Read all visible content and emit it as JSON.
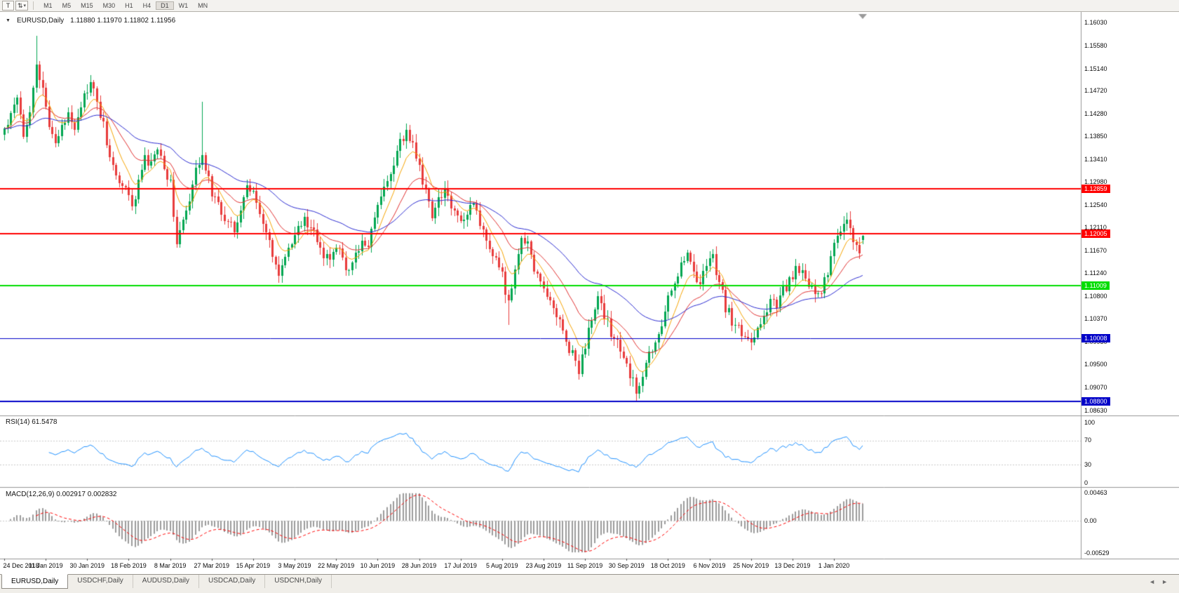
{
  "toolbar": {
    "tool_button_label": "T",
    "icons": {
      "cursor": "⇅",
      "caret": "▾"
    },
    "timeframes": [
      "M1",
      "M5",
      "M15",
      "M30",
      "H1",
      "H4",
      "D1",
      "W1",
      "MN"
    ],
    "active_timeframe": "D1"
  },
  "chart_header": {
    "collapse_icon": "▼",
    "title": "EURUSD,Daily",
    "ohlc": "1.11880 1.11970 1.11802 1.11956"
  },
  "chart_data": {
    "type": "candlestick",
    "symbol": "EURUSD",
    "timeframe": "Daily",
    "current_ohlc": {
      "open": 1.1188,
      "high": 1.1197,
      "low": 1.11802,
      "close": 1.11956
    },
    "ylim": [
      1.0863,
      1.1603
    ],
    "y_ticks": [
      "1.16030",
      "1.15580",
      "1.15140",
      "1.14720",
      "1.14280",
      "1.13850",
      "1.13410",
      "1.12980",
      "1.12540",
      "1.12110",
      "1.11670",
      "1.11240",
      "1.10800",
      "1.10370",
      "1.09930",
      "1.09500",
      "1.09070",
      "1.08630"
    ],
    "x_labels": [
      "24 Dec 2018",
      "11 Jan 2019",
      "30 Jan 2019",
      "18 Feb 2019",
      "8 Mar 2019",
      "27 Mar 2019",
      "15 Apr 2019",
      "3 May 2019",
      "22 May 2019",
      "10 Jun 2019",
      "28 Jun 2019",
      "17 Jul 2019",
      "5 Aug 2019",
      "23 Aug 2019",
      "11 Sep 2019",
      "30 Sep 2019",
      "18 Oct 2019",
      "6 Nov 2019",
      "25 Nov 2019",
      "13 Dec 2019",
      "1 Jan 2020"
    ],
    "candles_per_label": 13,
    "num_candles": 270,
    "up_color": "#00A651",
    "down_color": "#E83B3B",
    "close_waypoints": [
      [
        0,
        1.1398
      ],
      [
        2,
        1.1432
      ],
      [
        4,
        1.1468
      ],
      [
        6,
        1.1392
      ],
      [
        8,
        1.1438
      ],
      [
        10,
        1.1522
      ],
      [
        12,
        1.1468
      ],
      [
        14,
        1.1412
      ],
      [
        16,
        1.1375
      ],
      [
        18,
        1.1398
      ],
      [
        20,
        1.1432
      ],
      [
        22,
        1.1408
      ],
      [
        24,
        1.1446
      ],
      [
        27,
        1.1488
      ],
      [
        29,
        1.1448
      ],
      [
        31,
        1.1408
      ],
      [
        33,
        1.1342
      ],
      [
        36,
        1.13
      ],
      [
        38,
        1.1286
      ],
      [
        40,
        1.1248
      ],
      [
        42,
        1.1302
      ],
      [
        44,
        1.134
      ],
      [
        46,
        1.133
      ],
      [
        48,
        1.1366
      ],
      [
        50,
        1.1322
      ],
      [
        52,
        1.13
      ],
      [
        54,
        1.1186
      ],
      [
        56,
        1.1222
      ],
      [
        58,
        1.1256
      ],
      [
        60,
        1.132
      ],
      [
        62,
        1.1356
      ],
      [
        64,
        1.13
      ],
      [
        66,
        1.1264
      ],
      [
        68,
        1.124
      ],
      [
        70,
        1.1226
      ],
      [
        72,
        1.1214
      ],
      [
        74,
        1.1246
      ],
      [
        76,
        1.1286
      ],
      [
        78,
        1.129
      ],
      [
        80,
        1.123
      ],
      [
        82,
        1.12
      ],
      [
        84,
        1.1156
      ],
      [
        86,
        1.1126
      ],
      [
        88,
        1.115
      ],
      [
        90,
        1.1186
      ],
      [
        92,
        1.1206
      ],
      [
        94,
        1.1226
      ],
      [
        96,
        1.1214
      ],
      [
        98,
        1.1186
      ],
      [
        100,
        1.116
      ],
      [
        102,
        1.1146
      ],
      [
        104,
        1.1176
      ],
      [
        106,
        1.1156
      ],
      [
        108,
        1.112
      ],
      [
        110,
        1.1166
      ],
      [
        112,
        1.118
      ],
      [
        114,
        1.1176
      ],
      [
        116,
        1.123
      ],
      [
        118,
        1.127
      ],
      [
        120,
        1.1302
      ],
      [
        122,
        1.1332
      ],
      [
        124,
        1.1372
      ],
      [
        126,
        1.1396
      ],
      [
        128,
        1.1372
      ],
      [
        130,
        1.1322
      ],
      [
        132,
        1.128
      ],
      [
        134,
        1.1232
      ],
      [
        136,
        1.127
      ],
      [
        138,
        1.1282
      ],
      [
        140,
        1.1256
      ],
      [
        142,
        1.123
      ],
      [
        144,
        1.1226
      ],
      [
        146,
        1.1266
      ],
      [
        148,
        1.124
      ],
      [
        150,
        1.1206
      ],
      [
        152,
        1.1176
      ],
      [
        154,
        1.1146
      ],
      [
        156,
        1.112
      ],
      [
        158,
        1.1066
      ],
      [
        160,
        1.1122
      ],
      [
        162,
        1.1196
      ],
      [
        164,
        1.1176
      ],
      [
        166,
        1.1136
      ],
      [
        168,
        1.11
      ],
      [
        170,
        1.1086
      ],
      [
        172,
        1.1056
      ],
      [
        174,
        1.1036
      ],
      [
        176,
        1.0996
      ],
      [
        178,
        1.097
      ],
      [
        180,
        1.0936
      ],
      [
        182,
        1.099
      ],
      [
        184,
        1.104
      ],
      [
        186,
        1.107
      ],
      [
        188,
        1.1046
      ],
      [
        190,
        1.101
      ],
      [
        192,
        1.0996
      ],
      [
        194,
        1.096
      ],
      [
        196,
        1.093
      ],
      [
        198,
        1.0902
      ],
      [
        200,
        1.0936
      ],
      [
        202,
        1.0966
      ],
      [
        204,
        1.0986
      ],
      [
        206,
        1.103
      ],
      [
        208,
        1.1076
      ],
      [
        210,
        1.111
      ],
      [
        212,
        1.1146
      ],
      [
        214,
        1.116
      ],
      [
        216,
        1.113
      ],
      [
        218,
        1.1106
      ],
      [
        220,
        1.1146
      ],
      [
        222,
        1.1156
      ],
      [
        224,
        1.1106
      ],
      [
        226,
        1.106
      ],
      [
        228,
        1.1036
      ],
      [
        230,
        1.1016
      ],
      [
        232,
        1.1006
      ],
      [
        234,
        1.1
      ],
      [
        236,
        1.1016
      ],
      [
        238,
        1.1046
      ],
      [
        240,
        1.1076
      ],
      [
        242,
        1.106
      ],
      [
        244,
        1.109
      ],
      [
        246,
        1.111
      ],
      [
        248,
        1.113
      ],
      [
        250,
        1.112
      ],
      [
        252,
        1.1106
      ],
      [
        254,
        1.108
      ],
      [
        256,
        1.109
      ],
      [
        258,
        1.1126
      ],
      [
        260,
        1.1176
      ],
      [
        262,
        1.121
      ],
      [
        264,
        1.123
      ],
      [
        266,
        1.1186
      ],
      [
        268,
        1.1172
      ],
      [
        269,
        1.1196
      ]
    ],
    "spikes": [
      {
        "i": 10,
        "high": 1.1578
      },
      {
        "i": 62,
        "high": 1.1452
      },
      {
        "i": 158,
        "low": 1.1026
      },
      {
        "i": 180,
        "low": 1.0926
      },
      {
        "i": 198,
        "low": 1.0879
      },
      {
        "i": 264,
        "high": 1.124
      }
    ],
    "horizontal_lines": [
      {
        "price": "1.12859",
        "value": 1.12859,
        "color": "#FF0000",
        "width": 2
      },
      {
        "price": "1.12005",
        "value": 1.12005,
        "color": "#FF0000",
        "width": 2
      },
      {
        "price": "1.11009",
        "value": 1.11009,
        "color": "#00DD00",
        "width": 2
      },
      {
        "price": "1.10008",
        "value": 1.10008,
        "color": "#0000C8",
        "width": 1
      },
      {
        "price": "1.08800",
        "value": 1.088,
        "color": "#0000C8",
        "width": 2
      }
    ],
    "moving_averages": [
      {
        "period": 8,
        "color": "#F5A300"
      },
      {
        "period": 20,
        "color": "#E03030"
      },
      {
        "period": 50,
        "color": "#2B2BD0"
      }
    ]
  },
  "rsi_panel": {
    "label": "RSI(14) 61.5478",
    "period": 14,
    "value": 61.5478,
    "ticks": [
      "100",
      "70",
      "30",
      "0"
    ],
    "tick_values": [
      100,
      70,
      30,
      0
    ],
    "levels": [
      70,
      30
    ],
    "line_color": "#1E90FF"
  },
  "macd_panel": {
    "label": "MACD(12,26,9) 0.002917 0.002832",
    "fast": 12,
    "slow": 26,
    "signal": 9,
    "values": [
      0.002917,
      0.002832
    ],
    "ticks": [
      "0.00463",
      "0.00",
      "-0.00529"
    ],
    "tick_values": [
      0.00463,
      0,
      -0.00529
    ],
    "histogram_color": "#9b9b9b",
    "signal_color": "#FF0000"
  },
  "bottom_tabs": {
    "tabs": [
      "EURUSD,Daily",
      "USDCHF,Daily",
      "AUDUSD,Daily",
      "USDCAD,Daily",
      "USDCNH,Daily"
    ],
    "active_index": 0,
    "scroll_left": "◄",
    "scroll_right": "►"
  }
}
